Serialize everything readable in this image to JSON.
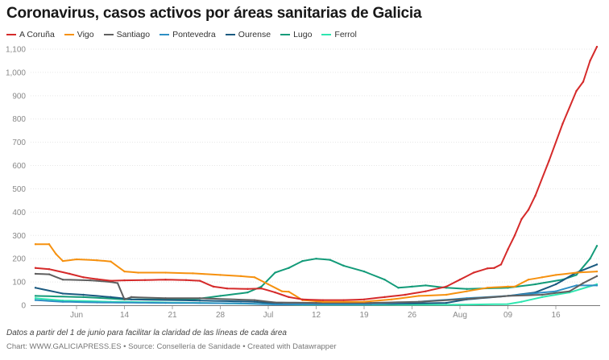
{
  "title": "Coronavirus, casos activos por áreas sanitarias de Galicia",
  "note": "Datos a partir del 1 de junio para facilitar la claridad de las líneas de cada área",
  "source": "Chart: WWW.GALICIAPRESS.ES • Source: Consellería de Sanidade • Created with Datawrapper",
  "chart_data": {
    "type": "line",
    "title": "Coronavirus, casos activos por áreas sanitarias de Galicia",
    "xlabel": "",
    "ylabel": "",
    "ylim": [
      0,
      1100
    ],
    "xlim": [
      "Jun 1",
      "Aug 22"
    ],
    "yticks": [
      0,
      100,
      200,
      300,
      400,
      500,
      600,
      700,
      800,
      900,
      1000,
      1100
    ],
    "ytick_labels": [
      "0",
      "100",
      "200",
      "300",
      "400",
      "500",
      "600",
      "700",
      "800",
      "900",
      "1,000",
      "1,100"
    ],
    "xticks": [
      "Jun 7",
      "Jun 14",
      "Jun 21",
      "Jun 28",
      "Jul 5",
      "Jul 12",
      "Jul 19",
      "Jul 26",
      "Aug 2",
      "Aug 9",
      "Aug 16"
    ],
    "xtick_labels": [
      "Jun",
      "14",
      "21",
      "28",
      "Jul",
      "12",
      "19",
      "26",
      "Aug",
      "09",
      "16"
    ],
    "grid": true,
    "legend": "top-left",
    "series": [
      {
        "name": "A Coruña",
        "color": "#d52a2a",
        "points": [
          [
            "Jun 1",
            160
          ],
          [
            "Jun 3",
            155
          ],
          [
            "Jun 6",
            135
          ],
          [
            "Jun 8",
            120
          ],
          [
            "Jun 10",
            112
          ],
          [
            "Jun 12",
            105
          ],
          [
            "Jun 14",
            107
          ],
          [
            "Jun 17",
            108
          ],
          [
            "Jun 20",
            110
          ],
          [
            "Jun 23",
            108
          ],
          [
            "Jun 25",
            105
          ],
          [
            "Jun 27",
            80
          ],
          [
            "Jun 29",
            72
          ],
          [
            "Jul 2",
            70
          ],
          [
            "Jul 4",
            72
          ],
          [
            "Jul 6",
            55
          ],
          [
            "Jul 8",
            35
          ],
          [
            "Jul 10",
            25
          ],
          [
            "Jul 13",
            22
          ],
          [
            "Jul 16",
            22
          ],
          [
            "Jul 19",
            25
          ],
          [
            "Jul 22",
            35
          ],
          [
            "Jul 25",
            45
          ],
          [
            "Jul 28",
            60
          ],
          [
            "Jul 31",
            80
          ],
          [
            "Aug 2",
            110
          ],
          [
            "Aug 4",
            140
          ],
          [
            "Aug 6",
            158
          ],
          [
            "Aug 7",
            160
          ],
          [
            "Aug 8",
            175
          ],
          [
            "Aug 9",
            240
          ],
          [
            "Aug 10",
            300
          ],
          [
            "Aug 11",
            370
          ],
          [
            "Aug 12",
            410
          ],
          [
            "Aug 13",
            470
          ],
          [
            "Aug 15",
            620
          ],
          [
            "Aug 17",
            780
          ],
          [
            "Aug 19",
            920
          ],
          [
            "Aug 20",
            960
          ],
          [
            "Aug 21",
            1050
          ],
          [
            "Aug 22",
            1110
          ]
        ]
      },
      {
        "name": "Vigo",
        "color": "#f6910f",
        "points": [
          [
            "Jun 1",
            262
          ],
          [
            "Jun 3",
            262
          ],
          [
            "Jun 4",
            220
          ],
          [
            "Jun 5",
            190
          ],
          [
            "Jun 7",
            197
          ],
          [
            "Jun 10",
            193
          ],
          [
            "Jun 12",
            188
          ],
          [
            "Jun 14",
            145
          ],
          [
            "Jun 16",
            140
          ],
          [
            "Jun 20",
            140
          ],
          [
            "Jun 24",
            137
          ],
          [
            "Jun 28",
            130
          ],
          [
            "Jul 1",
            125
          ],
          [
            "Jul 3",
            120
          ],
          [
            "Jul 5",
            90
          ],
          [
            "Jul 7",
            60
          ],
          [
            "Jul 8",
            58
          ],
          [
            "Jul 10",
            22
          ],
          [
            "Jul 13",
            15
          ],
          [
            "Jul 19",
            15
          ],
          [
            "Jul 23",
            25
          ],
          [
            "Jul 27",
            40
          ],
          [
            "Jul 31",
            45
          ],
          [
            "Aug 3",
            60
          ],
          [
            "Aug 6",
            75
          ],
          [
            "Aug 9",
            80
          ],
          [
            "Aug 10",
            80
          ],
          [
            "Aug 12",
            110
          ],
          [
            "Aug 14",
            120
          ],
          [
            "Aug 16",
            130
          ],
          [
            "Aug 19",
            140
          ],
          [
            "Aug 22",
            145
          ]
        ]
      },
      {
        "name": "Santiago",
        "color": "#5f5f5f",
        "points": [
          [
            "Jun 1",
            135
          ],
          [
            "Jun 3",
            133
          ],
          [
            "Jun 5",
            110
          ],
          [
            "Jun 9",
            107
          ],
          [
            "Jun 12",
            100
          ],
          [
            "Jun 13",
            95
          ],
          [
            "Jun 14",
            25
          ],
          [
            "Jun 15",
            35
          ],
          [
            "Jun 20",
            30
          ],
          [
            "Jun 25",
            30
          ],
          [
            "Jul 3",
            22
          ],
          [
            "Jul 6",
            12
          ],
          [
            "Jul 12",
            10
          ],
          [
            "Jul 20",
            10
          ],
          [
            "Jul 27",
            15
          ],
          [
            "Aug 2",
            25
          ],
          [
            "Aug 9",
            40
          ],
          [
            "Aug 14",
            45
          ],
          [
            "Aug 18",
            60
          ],
          [
            "Aug 20",
            95
          ],
          [
            "Aug 22",
            125
          ]
        ]
      },
      {
        "name": "Pontevedra",
        "color": "#2d8fc4",
        "points": [
          [
            "Jun 1",
            22
          ],
          [
            "Jun 5",
            15
          ],
          [
            "Jun 10",
            12
          ],
          [
            "Jun 20",
            10
          ],
          [
            "Jul 1",
            8
          ],
          [
            "Jul 6",
            3
          ],
          [
            "Jul 20",
            5
          ],
          [
            "Jul 27",
            15
          ],
          [
            "Aug 3",
            30
          ],
          [
            "Aug 9",
            40
          ],
          [
            "Aug 16",
            60
          ],
          [
            "Aug 19",
            85
          ],
          [
            "Aug 22",
            85
          ]
        ]
      },
      {
        "name": "Ourense",
        "color": "#1a5a80",
        "points": [
          [
            "Jun 1",
            75
          ],
          [
            "Jun 5",
            50
          ],
          [
            "Jun 8",
            45
          ],
          [
            "Jun 12",
            35
          ],
          [
            "Jun 15",
            25
          ],
          [
            "Jun 25",
            20
          ],
          [
            "Jul 3",
            15
          ],
          [
            "Jul 7",
            5
          ],
          [
            "Jul 20",
            5
          ],
          [
            "Jul 31",
            10
          ],
          [
            "Aug 3",
            25
          ],
          [
            "Aug 9",
            40
          ],
          [
            "Aug 13",
            55
          ],
          [
            "Aug 16",
            90
          ],
          [
            "Aug 19",
            140
          ],
          [
            "Aug 22",
            175
          ]
        ]
      },
      {
        "name": "Lugo",
        "color": "#139b79",
        "points": [
          [
            "Jun 1",
            40
          ],
          [
            "Jun 8",
            35
          ],
          [
            "Jun 14",
            25
          ],
          [
            "Jun 24",
            25
          ],
          [
            "Jun 28",
            40
          ],
          [
            "Jul 2",
            55
          ],
          [
            "Jul 4",
            80
          ],
          [
            "Jul 6",
            140
          ],
          [
            "Jul 8",
            160
          ],
          [
            "Jul 10",
            190
          ],
          [
            "Jul 12",
            200
          ],
          [
            "Jul 14",
            195
          ],
          [
            "Jul 16",
            170
          ],
          [
            "Jul 19",
            145
          ],
          [
            "Jul 22",
            110
          ],
          [
            "Jul 24",
            75
          ],
          [
            "Jul 26",
            80
          ],
          [
            "Jul 28",
            85
          ],
          [
            "Jul 31",
            75
          ],
          [
            "Aug 3",
            70
          ],
          [
            "Aug 9",
            75
          ],
          [
            "Aug 13",
            90
          ],
          [
            "Aug 17",
            110
          ],
          [
            "Aug 19",
            130
          ],
          [
            "Aug 21",
            200
          ],
          [
            "Aug 22",
            255
          ]
        ]
      },
      {
        "name": "Ferrol",
        "color": "#2ee6b0",
        "points": [
          [
            "Jun 1",
            30
          ],
          [
            "Jun 5",
            20
          ],
          [
            "Jun 12",
            15
          ],
          [
            "Jun 25",
            10
          ],
          [
            "Jul 5",
            5
          ],
          [
            "Jul 10",
            2
          ],
          [
            "Aug 1",
            2
          ],
          [
            "Aug 9",
            5
          ],
          [
            "Aug 11",
            15
          ],
          [
            "Aug 14",
            35
          ],
          [
            "Aug 18",
            55
          ],
          [
            "Aug 22",
            90
          ]
        ]
      }
    ]
  }
}
